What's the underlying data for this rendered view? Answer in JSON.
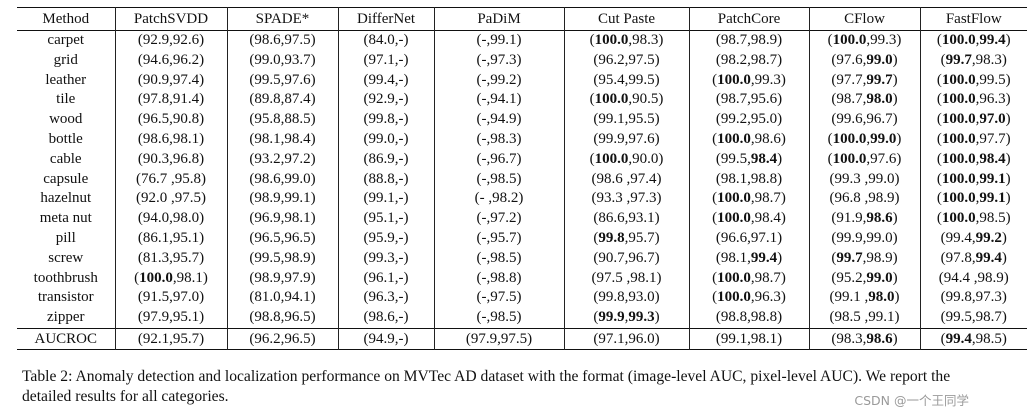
{
  "table": {
    "header": [
      "Method",
      "PatchSVDD",
      "SPADE*",
      "DifferNet",
      "PaDiM",
      "Cut Paste",
      "PatchCore",
      "CFlow",
      "FastFlow"
    ],
    "rows": [
      {
        "category": "carpet",
        "cells": [
          "(92.9,92.6)",
          "(98.6,97.5)",
          "(84.0,-)",
          "(-,99.1)",
          "(**100.0**,98.3)",
          "(98.7,98.9)",
          "(**100.0**,99.3)",
          "(**100.0**,**99.4**)"
        ]
      },
      {
        "category": "grid",
        "cells": [
          "(94.6,96.2)",
          "(99.0,93.7)",
          "(97.1,-)",
          "(-,97.3)",
          "(96.2,97.5)",
          "(98.2,98.7)",
          "(97.6,**99.0**)",
          "(**99.7**,98.3)"
        ]
      },
      {
        "category": "leather",
        "cells": [
          "(90.9,97.4)",
          "(99.5,97.6)",
          "(99.4,-)",
          "(-,99.2)",
          "(95.4,99.5)",
          "(**100.0**,99.3)",
          "(97.7,**99.7**)",
          "(**100.0**,99.5)"
        ]
      },
      {
        "category": "tile",
        "cells": [
          "(97.8,91.4)",
          "(89.8,87.4)",
          "(92.9,-)",
          "(-,94.1)",
          "(**100.0**,90.5)",
          "(98.7,95.6)",
          "(98.7,**98.0**)",
          "(**100.0**,96.3)"
        ]
      },
      {
        "category": "wood",
        "cells": [
          "(96.5,90.8)",
          "(95.8,88.5)",
          "(99.8,-)",
          "(-,94.9)",
          "(99.1,95.5)",
          "(99.2,95.0)",
          "(99.6,96.7)",
          "(**100.0**,**97.0**)"
        ]
      },
      {
        "category": "bottle",
        "cells": [
          "(98.6,98.1)",
          "(98.1,98.4)",
          "(99.0,-)",
          "(-,98.3)",
          "(99.9,97.6)",
          "(**100.0**,98.6)",
          "(**100.0**,**99.0**)",
          "(**100.0**,97.7)"
        ]
      },
      {
        "category": "cable",
        "cells": [
          "(90.3,96.8)",
          "(93.2,97.2)",
          "(86.9,-)",
          "(-,96.7)",
          "(**100.0**,90.0)",
          "(99.5,**98.4**)",
          "(**100.0**,97.6)",
          "(**100.0**,**98.4**)"
        ]
      },
      {
        "category": "capsule",
        "cells": [
          "(76.7 ,95.8)",
          "(98.6,99.0)",
          "(88.8,-)",
          "(-,98.5)",
          "(98.6 ,97.4)",
          "(98.1,98.8)",
          "(99.3 ,99.0)",
          "(**100.0**,**99.1**)"
        ]
      },
      {
        "category": "hazelnut",
        "cells": [
          "(92.0 ,97.5)",
          "(98.9,99.1)",
          "(99.1,-)",
          "(- ,98.2)",
          "(93.3 ,97.3)",
          "(**100.0**,98.7)",
          "(96.8 ,98.9)",
          "(**100.0**,**99.1**)"
        ]
      },
      {
        "category": "meta nut",
        "cells": [
          "(94.0,98.0)",
          "(96.9,98.1)",
          "(95.1,-)",
          "(-,97.2)",
          "(86.6,93.1)",
          "(**100.0**,98.4)",
          "(91.9,**98.6**)",
          "(**100.0**,98.5)"
        ]
      },
      {
        "category": "pill",
        "cells": [
          "(86.1,95.1)",
          "(96.5,96.5)",
          "(95.9,-)",
          "(-,95.7)",
          "(**99.8**,95.7)",
          "(96.6,97.1)",
          "(99.9,99.0)",
          "(99.4,**99.2**)"
        ]
      },
      {
        "category": "screw",
        "cells": [
          "(81.3,95.7)",
          "(99.5,98.9)",
          "(99.3,-)",
          "(-,98.5)",
          "(90.7,96.7)",
          "(98.1,**99.4**)",
          "(**99.7**,98.9)",
          "(97.8,**99.4**)"
        ]
      },
      {
        "category": "toothbrush",
        "cells": [
          "(**100.0**,98.1)",
          "(98.9,97.9)",
          "(96.1,-)",
          "(-,98.8)",
          "(97.5 ,98.1)",
          "(**100.0**,98.7)",
          "(95.2,**99.0**)",
          "(94.4 ,98.9)"
        ]
      },
      {
        "category": "transistor",
        "cells": [
          "(91.5,97.0)",
          "(81.0,94.1)",
          "(96.3,-)",
          "(-,97.5)",
          "(99.8,93.0)",
          "(**100.0**,96.3)",
          "(99.1 ,**98.0**)",
          "(99.8,97.3)"
        ]
      },
      {
        "category": "zipper",
        "cells": [
          "(97.9,95.1)",
          "(98.8,96.5)",
          "(98.6,-)",
          "(-,98.5)",
          "(**99.9**,**99.3**)",
          "(98.8,98.8)",
          "(98.5 ,99.1)",
          "(99.5,98.7)"
        ]
      }
    ],
    "footer": {
      "category": "AUCROC",
      "cells": [
        "(92.1,95.7)",
        "(96.2,96.5)",
        "(94.9,-)",
        "(97.9,97.5)",
        "(97.1,96.0)",
        "(99.1,98.1)",
        "(98.3,**98.6**)",
        "(**99.4**,98.5)"
      ]
    }
  },
  "caption": "Table 2: Anomaly detection and localization performance on MVTec AD dataset with the format (image-level AUC, pixel-level AUC). We report the detailed results for all categories.",
  "watermark": "CSDN @一个王同学"
}
